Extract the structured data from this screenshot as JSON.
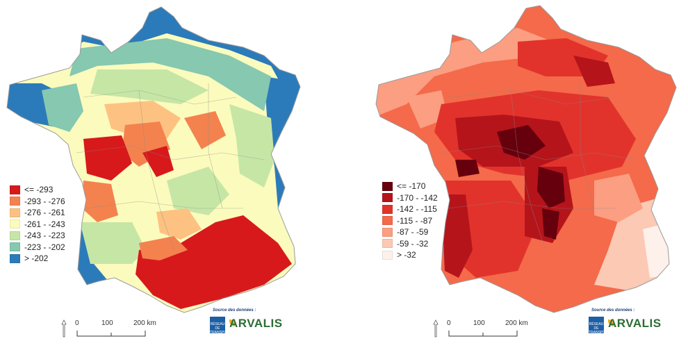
{
  "left_map": {
    "legend": [
      {
        "label": "<= -293",
        "color": "#d7191c"
      },
      {
        "label": "-293 - -276",
        "color": "#f4824e"
      },
      {
        "label": "-276 - -261",
        "color": "#fdc281"
      },
      {
        "label": "-261 - -243",
        "color": "#fbfbbd"
      },
      {
        "label": "-243 - -223",
        "color": "#c6e6a6"
      },
      {
        "label": "-223 - -202",
        "color": "#86c8b0"
      },
      {
        "label": "> -202",
        "color": "#2b7bba"
      }
    ],
    "scale": {
      "tick_0": "0",
      "tick_100": "100",
      "tick_200": "200 km"
    },
    "credit": {
      "source": "Source des données :",
      "rte": "RÉSEAU DE TRANSPORT D'ÉLECTRICITÉ",
      "arvalis": "ARVALIS"
    }
  },
  "right_map": {
    "legend": [
      {
        "label": "<= -170",
        "color": "#67000d"
      },
      {
        "label": "-170 - -142",
        "color": "#b5141b"
      },
      {
        "label": "-142 - -115",
        "color": "#e1332c"
      },
      {
        "label": "-115 - -87",
        "color": "#f46a4a"
      },
      {
        "label": "-87 - -59",
        "color": "#fb9e81"
      },
      {
        "label": "-59 - -32",
        "color": "#fcc9b4"
      },
      {
        "label": "> -32",
        "color": "#fef0ea"
      }
    ],
    "scale": {
      "tick_0": "0",
      "tick_100": "100",
      "tick_200": "200 km"
    },
    "credit": {
      "source": "Source des données :",
      "rte": "RÉSEAU DE TRANSPORT D'ÉLECTRICITÉ",
      "arvalis": "ARVALIS"
    }
  }
}
